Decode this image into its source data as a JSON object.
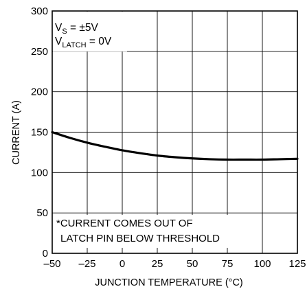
{
  "chart_data": {
    "type": "line",
    "title": "",
    "xlabel": "JUNCTION TEMPERATURE (°C)",
    "ylabel": "CURRENT (A)",
    "xlim": [
      -50,
      125
    ],
    "ylim": [
      0,
      300
    ],
    "x_ticks": [
      "–50",
      "–25",
      "0",
      "25",
      "50",
      "75",
      "100",
      "125"
    ],
    "y_ticks": [
      "0",
      "50",
      "100",
      "150",
      "200",
      "250",
      "300"
    ],
    "grid": true,
    "conditions": {
      "line1_main": "V",
      "line1_sub": "S",
      "line1_rest": " = ±5V",
      "line2_main": "V",
      "line2_sub": "LATCH",
      "line2_rest": " = 0V"
    },
    "note": [
      "*CURRENT COMES OUT OF",
      "LATCH PIN BELOW THRESHOLD"
    ],
    "series": [
      {
        "name": "",
        "color": "#000000",
        "x": [
          -50,
          -37.5,
          -25,
          -12.5,
          0,
          12.5,
          25,
          37.5,
          50,
          62.5,
          75,
          87.5,
          100,
          112.5,
          125
        ],
        "y": [
          150,
          143,
          137,
          132,
          127.5,
          124,
          121,
          119,
          117.5,
          116.5,
          116,
          116,
          116,
          116.5,
          117
        ]
      }
    ]
  }
}
